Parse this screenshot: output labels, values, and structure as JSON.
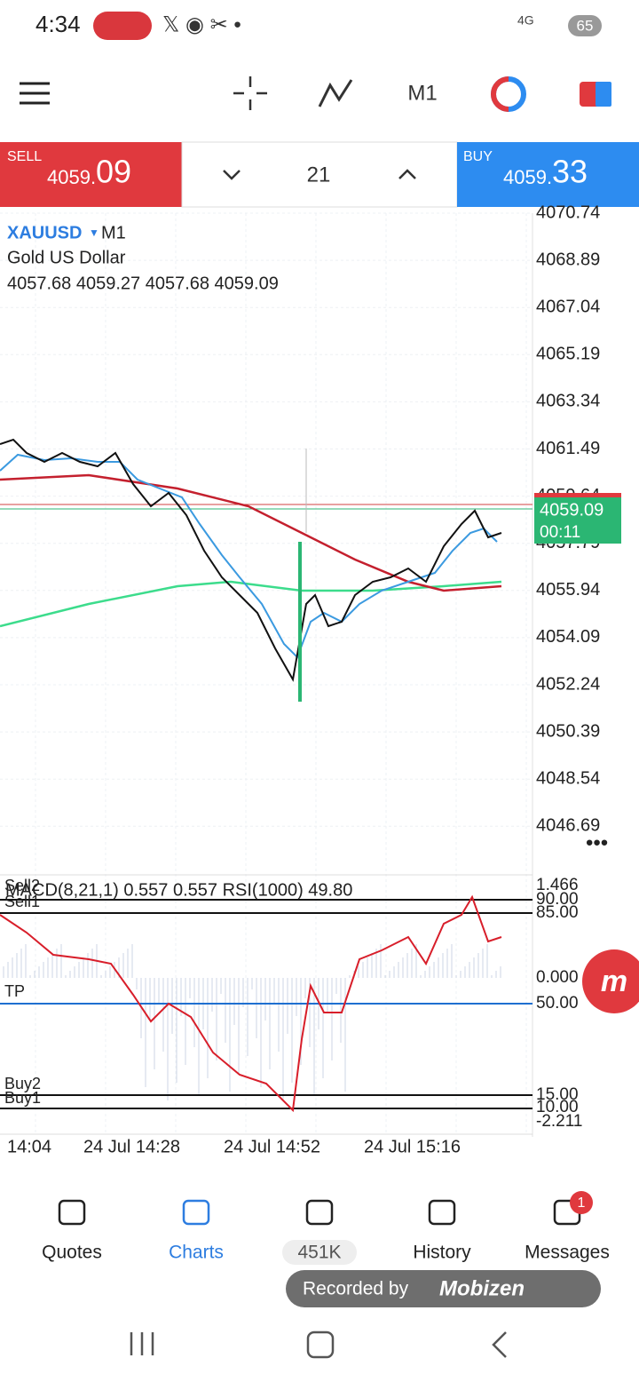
{
  "status_bar": {
    "time": "4:34",
    "network": "4G",
    "battery": "65"
  },
  "toolbar": {
    "timeframe": "M1"
  },
  "trade_panel": {
    "sell": {
      "label": "SELL",
      "price_main": "4059.",
      "price_big": "09"
    },
    "lot": "21",
    "buy": {
      "label": "BUY",
      "price_main": "4059.",
      "price_big": "33"
    }
  },
  "chart": {
    "symbol": "XAUUSD",
    "timeframe": "M1",
    "description": "Gold US Dollar",
    "ohlc": "4057.68 4059.27 4057.68 4059.09",
    "price_labels": [
      "4070.74",
      "4068.89",
      "4067.04",
      "4065.19",
      "4063.34",
      "4061.49",
      "4059.64",
      "4057.79",
      "4055.94",
      "4054.09",
      "4052.24",
      "4050.39",
      "4048.54",
      "4046.69"
    ],
    "current_price": "4059.09",
    "countdown": "00:11"
  },
  "indicator": {
    "header": "MACD(8,21,1) 0.557 0.557 RSI(1000) 49.80",
    "levels": [
      "Sell2",
      "Sell1",
      "TP",
      "Buy2",
      "Buy1"
    ],
    "axis_labels": [
      "1.466",
      "90.00",
      "85.00",
      "0.000",
      "50.00",
      "15.00",
      "10.00",
      "-2.211"
    ]
  },
  "time_labels": [
    "14:04",
    "24 Jul 14:28",
    "24 Jul 14:52",
    "24 Jul 15:16"
  ],
  "nav": {
    "items": [
      "Quotes",
      "Charts",
      "451K",
      "History",
      "Messages"
    ],
    "badge": "1"
  },
  "recorder": {
    "text": "Recorded by",
    "brand": "Mobizen"
  }
}
